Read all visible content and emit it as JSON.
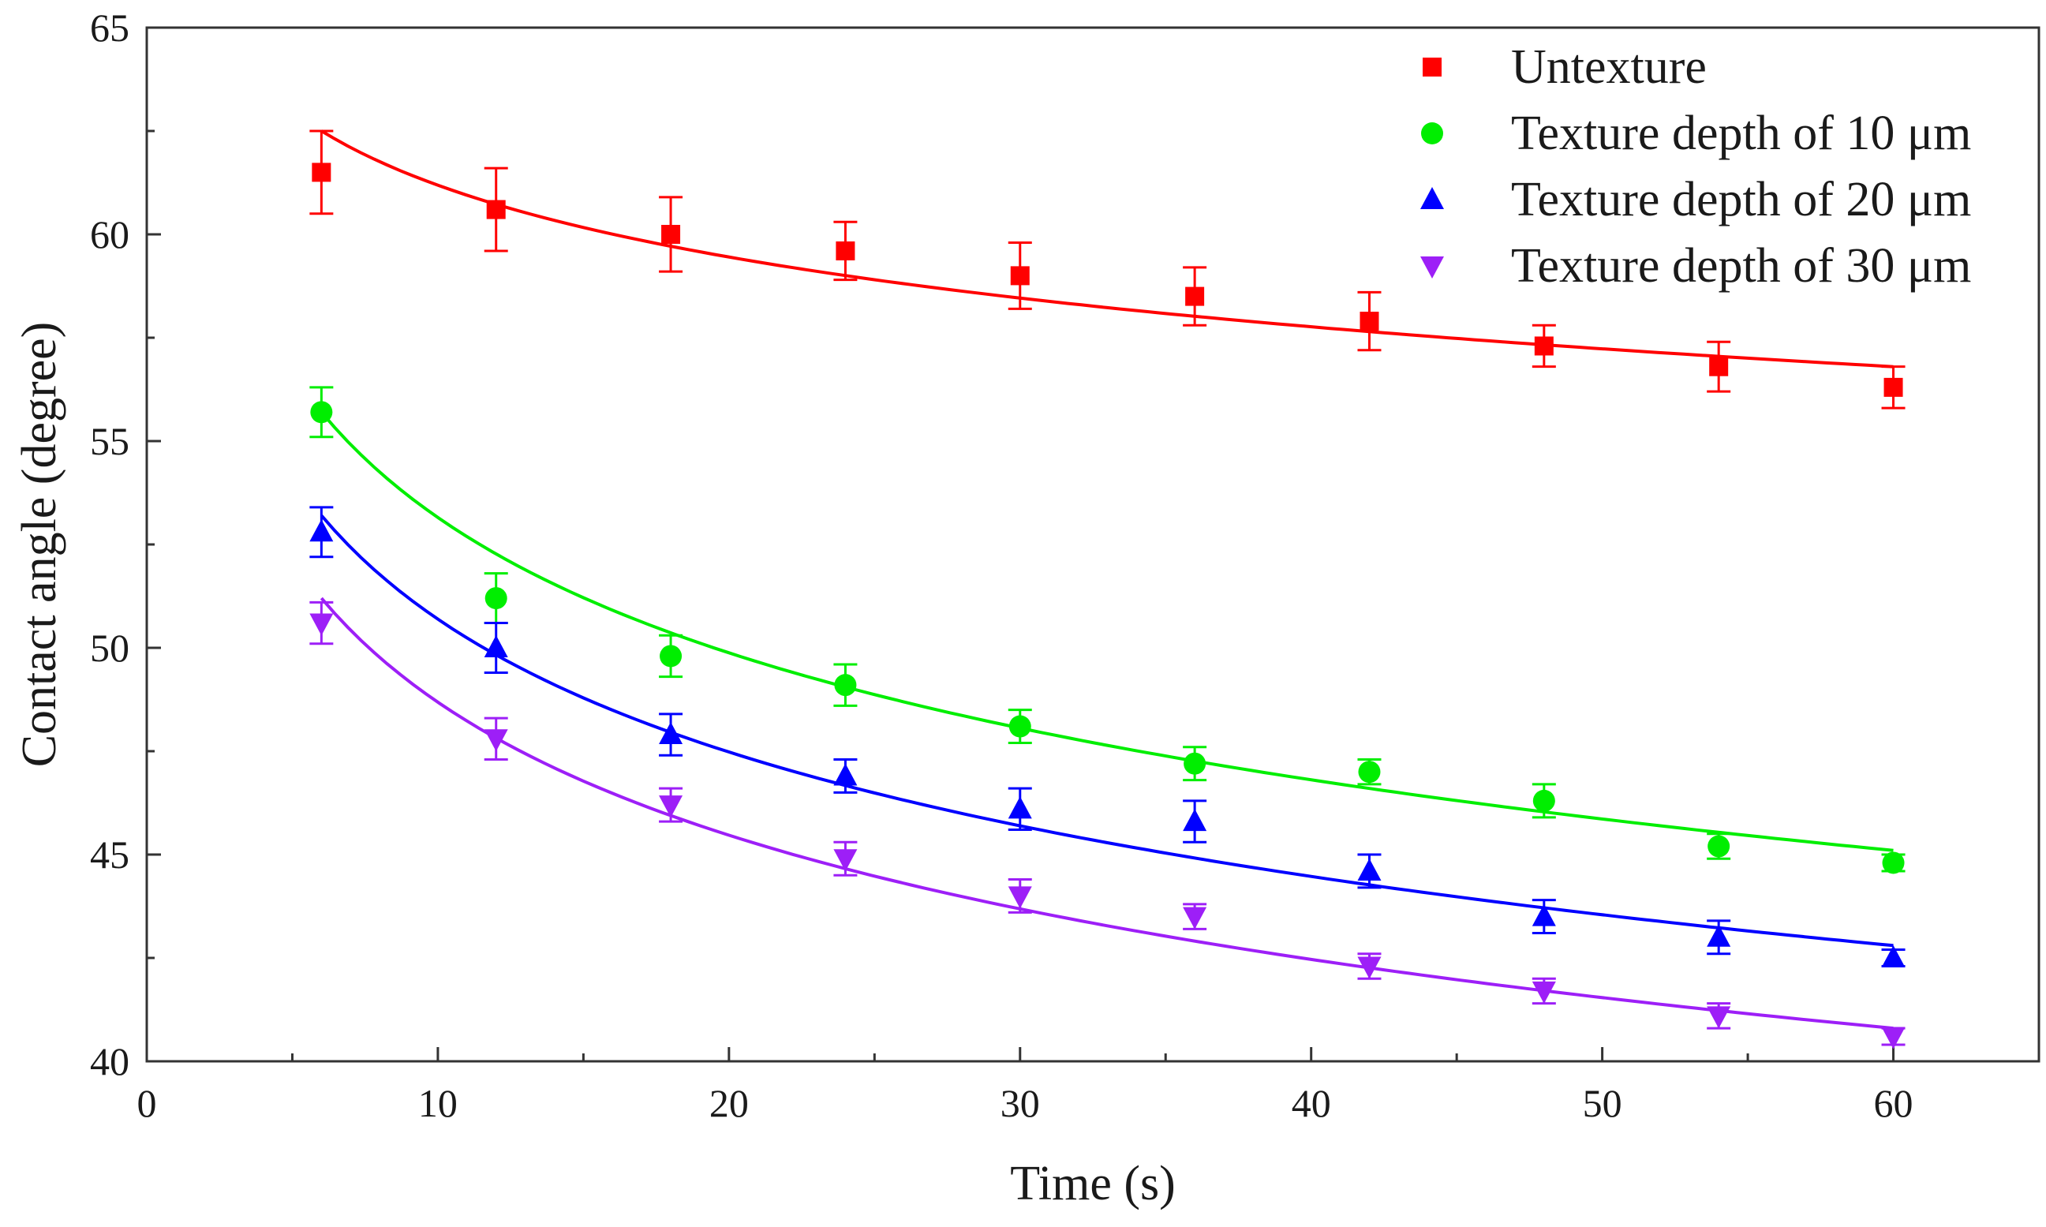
{
  "chart_data": {
    "type": "scatter",
    "title": "",
    "xlabel": "Time (s)",
    "ylabel": "Contact angle (degree)",
    "xlim": [
      0,
      65
    ],
    "ylim": [
      40,
      65
    ],
    "x_major_ticks": [
      0,
      10,
      20,
      30,
      40,
      50,
      60
    ],
    "x_minor_ticks": [
      5,
      15,
      25,
      35,
      45,
      55
    ],
    "y_major_ticks": [
      40,
      45,
      50,
      55,
      60,
      65
    ],
    "y_minor_ticks": [
      42.5,
      47.5,
      52.5,
      57.5,
      62.5
    ],
    "x_tick_labels": [
      "0",
      "10",
      "20",
      "30",
      "40",
      "50",
      "60"
    ],
    "y_tick_labels": [
      "40",
      "45",
      "50",
      "55",
      "60",
      "65"
    ],
    "grid": false,
    "legend_position": "top-right",
    "x": [
      6,
      12,
      18,
      24,
      30,
      36,
      42,
      48,
      54,
      60
    ],
    "series": [
      {
        "name": "Untexture",
        "color": "#ff0000",
        "marker": "square",
        "values": [
          61.5,
          60.6,
          60.0,
          59.6,
          59.0,
          58.5,
          57.9,
          57.3,
          56.8,
          56.3
        ],
        "errors": [
          1.0,
          1.0,
          0.9,
          0.7,
          0.8,
          0.7,
          0.7,
          0.5,
          0.6,
          0.5
        ],
        "fit_start": 62.5,
        "fit_end": 56.8
      },
      {
        "name": "Texture depth of 10 μm",
        "color": "#00ee00",
        "marker": "circle",
        "values": [
          55.7,
          51.2,
          49.8,
          49.1,
          48.1,
          47.2,
          47.0,
          46.3,
          45.2,
          44.8
        ],
        "errors": [
          0.6,
          0.6,
          0.5,
          0.5,
          0.4,
          0.4,
          0.3,
          0.4,
          0.3,
          0.2
        ],
        "fit_start": 55.7,
        "fit_end": 45.1
      },
      {
        "name": "Texture depth of 20 μm",
        "color": "#0000ff",
        "marker": "triangle-up",
        "values": [
          52.8,
          50.0,
          47.9,
          46.9,
          46.1,
          45.8,
          44.6,
          43.5,
          43.0,
          42.5
        ],
        "errors": [
          0.6,
          0.6,
          0.5,
          0.4,
          0.5,
          0.5,
          0.4,
          0.4,
          0.4,
          0.2
        ],
        "fit_start": 53.2,
        "fit_end": 42.8
      },
      {
        "name": "Texture depth of 30 μm",
        "color": "#9d1ff7",
        "marker": "triangle-down",
        "values": [
          50.6,
          47.8,
          46.2,
          44.9,
          44.0,
          43.5,
          42.3,
          41.7,
          41.1,
          40.6
        ],
        "errors": [
          0.5,
          0.5,
          0.4,
          0.4,
          0.4,
          0.3,
          0.3,
          0.3,
          0.3,
          0.2
        ],
        "fit_start": 51.2,
        "fit_end": 40.8
      }
    ]
  }
}
